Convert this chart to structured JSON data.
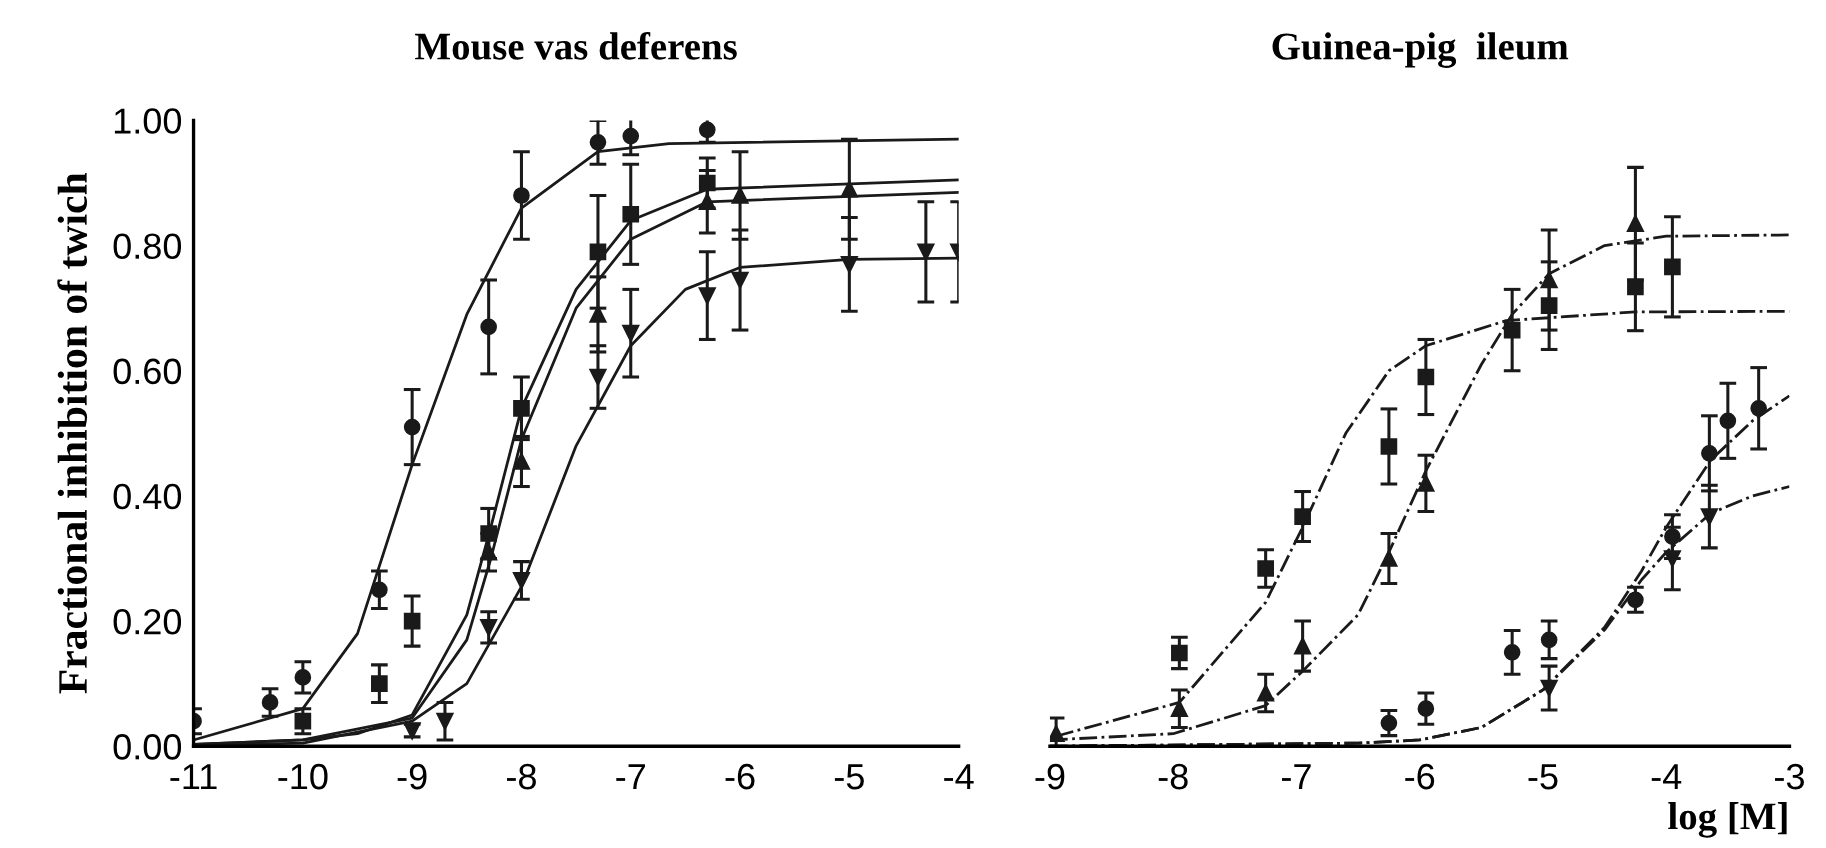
{
  "chart_data": [
    {
      "type": "scatter",
      "title": "Mouse vas deferens",
      "ylabel": "Fractional inhibition of twich",
      "xlim": [
        -11,
        -4
      ],
      "xticks": [
        -11,
        -10,
        -9,
        -8,
        -7,
        -6,
        -5,
        -4
      ],
      "ylim": [
        0,
        1.0
      ],
      "yticks": [
        {
          "value": 0,
          "label": "0.00"
        },
        {
          "value": 0.2,
          "label": "0.20"
        },
        {
          "value": 0.4,
          "label": "0.40"
        },
        {
          "value": 0.6,
          "label": "0.60"
        },
        {
          "value": 0.8,
          "label": "0.80"
        },
        {
          "value": 1.0,
          "label": "1.00"
        }
      ],
      "grid": false,
      "legend": false,
      "series": [
        {
          "marker": "circle",
          "color": "#1a1a1a",
          "x": [
            -11,
            -10.3,
            -10,
            -9.3,
            -9,
            -8.3,
            -8,
            -7.3,
            -7,
            -6.3
          ],
          "values": [
            0.04,
            0.07,
            0.11,
            0.25,
            0.51,
            0.67,
            0.88,
            0.965,
            0.975,
            0.985
          ],
          "errors": [
            0.02,
            0.022,
            0.025,
            0.03,
            0.06,
            0.075,
            0.07,
            0.035,
            0.03,
            0.02
          ]
        },
        {
          "marker": "square",
          "color": "#1a1a1a",
          "x": [
            -10,
            -9.3,
            -9,
            -8.3,
            -8,
            -7.3,
            -7,
            -6.3
          ],
          "values": [
            0.04,
            0.1,
            0.2,
            0.34,
            0.54,
            0.79,
            0.85,
            0.9
          ],
          "errors": [
            0.02,
            0.03,
            0.04,
            0.04,
            0.05,
            0.09,
            0.08,
            0.04
          ]
        },
        {
          "marker": "triangle",
          "color": "#1a1a1a",
          "x": [
            -8.3,
            -8,
            -7.3,
            -6.3,
            -6,
            -5
          ],
          "values": [
            0.31,
            0.455,
            0.69,
            0.87,
            0.88,
            0.89
          ],
          "errors": [
            0.03,
            0.04,
            0.06,
            0.05,
            0.07,
            0.08
          ]
        },
        {
          "marker": "triangle_down",
          "color": "#1a1a1a",
          "x": [
            -9,
            -8.7,
            -8.3,
            -8,
            -7.3,
            -7,
            -6.3,
            -6,
            -5,
            -4.3,
            -4
          ],
          "values": [
            0.025,
            0.04,
            0.19,
            0.265,
            0.59,
            0.66,
            0.72,
            0.745,
            0.77,
            0.79,
            0.79
          ],
          "errors": [
            0.01,
            0.03,
            0.025,
            0.03,
            0.05,
            0.07,
            0.07,
            0.08,
            0.075,
            0.08,
            0.08
          ]
        },
        {
          "type": "line",
          "line_style": "solid",
          "color": "#1a1a1a",
          "x": [
            -11,
            -10,
            -9.5,
            -9,
            -8.5,
            -8,
            -7.3,
            -6.65,
            -4
          ],
          "values": [
            0.01,
            0.06,
            0.18,
            0.45,
            0.69,
            0.86,
            0.95,
            0.963,
            0.97
          ]
        },
        {
          "type": "line",
          "line_style": "solid",
          "color": "#1a1a1a",
          "x": [
            -11,
            -10,
            -9.5,
            -9,
            -8.5,
            -8.28,
            -8,
            -7.5,
            -7,
            -6.3,
            -4
          ],
          "values": [
            0.003,
            0.01,
            0.02,
            0.05,
            0.21,
            0.35,
            0.54,
            0.73,
            0.84,
            0.89,
            0.905
          ]
        },
        {
          "type": "line",
          "line_style": "solid",
          "color": "#1a1a1a",
          "x": [
            -11,
            -10,
            -9,
            -8.5,
            -8.28,
            -8,
            -7.5,
            -7,
            -6.3,
            -4
          ],
          "values": [
            0.003,
            0.01,
            0.045,
            0.17,
            0.3,
            0.49,
            0.7,
            0.81,
            0.87,
            0.885
          ]
        },
        {
          "type": "line",
          "line_style": "solid",
          "color": "#1a1a1a",
          "x": [
            -11,
            -10,
            -9,
            -8.5,
            -8,
            -7.5,
            -7,
            -6.5,
            -6,
            -5,
            -4
          ],
          "values": [
            0.001,
            0.005,
            0.04,
            0.1,
            0.255,
            0.48,
            0.64,
            0.73,
            0.765,
            0.778,
            0.78
          ]
        }
      ]
    },
    {
      "type": "scatter",
      "title": "Guinea-pig  ileum",
      "xlabel": "log [M]",
      "xlim": [
        -9,
        -3
      ],
      "xticks": [
        -9,
        -8,
        -7,
        -6,
        -5,
        -4,
        -3
      ],
      "ylim": [
        0,
        1.0
      ],
      "tick_labels": "x",
      "grid": false,
      "legend": false,
      "series": [
        {
          "marker": "square",
          "color": "#1a1a1a",
          "x": [
            -7.95,
            -7.25,
            -6.95,
            -6.25,
            -5.95,
            -5.25,
            -4.95,
            -4.25,
            -3.95
          ],
          "values": [
            0.149,
            0.284,
            0.367,
            0.479,
            0.59,
            0.665,
            0.704,
            0.734,
            0.766
          ],
          "errors": [
            0.025,
            0.03,
            0.04,
            0.06,
            0.06,
            0.065,
            0.07,
            0.07,
            0.08
          ]
        },
        {
          "marker": "triangle",
          "color": "#1a1a1a",
          "x": [
            -8.95,
            -7.95,
            -7.25,
            -6.95,
            -6.25,
            -5.95,
            -4.95,
            -4.25
          ],
          "values": [
            0.02,
            0.06,
            0.085,
            0.16,
            0.3,
            0.42,
            0.745,
            0.835
          ],
          "errors": [
            0.025,
            0.03,
            0.03,
            0.04,
            0.04,
            0.045,
            0.08,
            0.09
          ]
        },
        {
          "marker": "circle",
          "color": "#1a1a1a",
          "x": [
            -6.25,
            -5.95,
            -5.25,
            -4.95,
            -4.25,
            -3.95,
            -3.65,
            -3.5,
            -3.25
          ],
          "values": [
            0.037,
            0.06,
            0.15,
            0.17,
            0.234,
            0.335,
            0.468,
            0.52,
            0.54
          ],
          "errors": [
            0.02,
            0.025,
            0.035,
            0.03,
            0.02,
            0.035,
            0.06,
            0.06,
            0.065
          ]
        },
        {
          "marker": "triangle_down",
          "color": "#1a1a1a",
          "x": [
            -4.95,
            -3.95,
            -3.65
          ],
          "values": [
            0.093,
            0.3,
            0.367
          ],
          "errors": [
            0.035,
            0.05,
            0.05
          ]
        },
        {
          "type": "line",
          "line_style": "dashdot",
          "color": "#1a1a1a",
          "x": [
            -8.95,
            -7.95,
            -7.25,
            -6.95,
            -6.6,
            -6.25,
            -5.95,
            -5.3,
            -4.25,
            -3
          ],
          "values": [
            0.016,
            0.07,
            0.23,
            0.35,
            0.5,
            0.6,
            0.64,
            0.68,
            0.694,
            0.695
          ]
        },
        {
          "type": "line",
          "line_style": "dashdot",
          "color": "#1a1a1a",
          "x": [
            -9,
            -8,
            -7.25,
            -6.95,
            -6.5,
            -6.25,
            -5.95,
            -5.5,
            -5.25,
            -4.95,
            -4.5,
            -4,
            -3
          ],
          "values": [
            0.01,
            0.02,
            0.065,
            0.12,
            0.21,
            0.31,
            0.44,
            0.61,
            0.69,
            0.755,
            0.8,
            0.815,
            0.817
          ]
        },
        {
          "type": "line",
          "line_style": "dashdot",
          "color": "#1a1a1a",
          "x": [
            -9,
            -6.5,
            -6,
            -5.5,
            -5,
            -4.5,
            -4.2,
            -4,
            -3.64,
            -3.3,
            -3
          ],
          "values": [
            0.0,
            0.005,
            0.01,
            0.03,
            0.09,
            0.19,
            0.28,
            0.35,
            0.457,
            0.52,
            0.56
          ]
        },
        {
          "type": "line",
          "line_style": "dashdot",
          "color": "#1a1a1a",
          "x": [
            -9,
            -6.5,
            -6,
            -5.5,
            -5,
            -4.5,
            -4.2,
            -4,
            -3.64,
            -3.3,
            -3
          ],
          "values": [
            0.0,
            0.005,
            0.01,
            0.03,
            0.09,
            0.186,
            0.266,
            0.31,
            0.372,
            0.4,
            0.415
          ]
        }
      ]
    }
  ]
}
